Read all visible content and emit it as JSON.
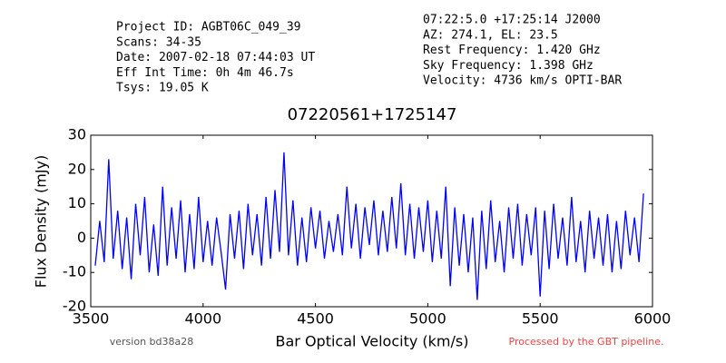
{
  "chart_data": {
    "type": "line",
    "title": "07220561+1725147",
    "header_left": [
      "Project ID: AGBT06C_049_39",
      "Scans: 34-35",
      "Date: 2007-02-18 07:44:03 UT",
      "Eff Int Time: 0h 4m 46.7s",
      "Tsys: 19.05 K"
    ],
    "header_right": [
      "07:22:5.0 +17:25:14 J2000",
      "AZ: 274.1, EL: 23.5",
      "Rest Frequency:   1.420 GHz",
      "Sky Frequency:    1.398 GHz",
      "Velocity: 4736 km/s OPTI-BAR"
    ],
    "footer_left": "version bd38a28",
    "footer_right": "Processed by the GBT pipeline.",
    "xlabel": "Bar Optical Velocity (km/s)",
    "ylabel": "Flux Density (mJy)",
    "color": "#0000ff",
    "x": [
      3520,
      3540,
      3560,
      3580,
      3600,
      3620,
      3640,
      3660,
      3680,
      3700,
      3720,
      3740,
      3760,
      3780,
      3800,
      3820,
      3840,
      3860,
      3880,
      3900,
      3920,
      3940,
      3960,
      3980,
      4000,
      4020,
      4040,
      4060,
      4080,
      4100,
      4120,
      4140,
      4160,
      4180,
      4200,
      4220,
      4240,
      4260,
      4280,
      4300,
      4320,
      4340,
      4360,
      4380,
      4400,
      4420,
      4440,
      4460,
      4480,
      4500,
      4520,
      4540,
      4560,
      4580,
      4600,
      4620,
      4640,
      4660,
      4680,
      4700,
      4720,
      4740,
      4760,
      4780,
      4800,
      4820,
      4840,
      4860,
      4880,
      4900,
      4920,
      4940,
      4960,
      4980,
      5000,
      5020,
      5040,
      5060,
      5080,
      5100,
      5120,
      5140,
      5160,
      5180,
      5200,
      5220,
      5240,
      5260,
      5280,
      5300,
      5320,
      5340,
      5360,
      5380,
      5400,
      5420,
      5440,
      5460,
      5480,
      5500,
      5520,
      5540,
      5560,
      5580,
      5600,
      5620,
      5640,
      5660,
      5680,
      5700,
      5720,
      5740,
      5760,
      5780,
      5800,
      5820,
      5840,
      5860,
      5880,
      5900,
      5920,
      5940,
      5960
    ],
    "values": [
      -8,
      5,
      -7,
      23,
      -6,
      8,
      -9,
      6,
      -12,
      10,
      -5,
      12,
      -10,
      4,
      -11,
      15,
      -8,
      9,
      -6,
      11,
      -10,
      7,
      -9,
      12,
      -7,
      5,
      -8,
      6,
      -4,
      -15,
      7,
      -6,
      8,
      -9,
      10,
      -5,
      7,
      -8,
      12,
      -6,
      14,
      -4,
      25,
      -5,
      11,
      -8,
      6,
      -7,
      9,
      -3,
      8,
      -6,
      5,
      -4,
      7,
      -5,
      15,
      -3,
      10,
      -6,
      9,
      -2,
      11,
      -5,
      8,
      -4,
      12,
      -3,
      16,
      -5,
      10,
      -6,
      9,
      -4,
      11,
      -7,
      8,
      -6,
      15,
      -14,
      9,
      -8,
      7,
      -10,
      6,
      -18,
      8,
      -9,
      11,
      -7,
      5,
      -10,
      9,
      -6,
      10,
      -8,
      7,
      -5,
      9,
      -17,
      8,
      -9,
      10,
      -6,
      6,
      -8,
      12,
      -7,
      5,
      -10,
      8,
      -6,
      6,
      -8,
      7,
      -10,
      5,
      -9,
      8,
      -5,
      6,
      -7,
      13
    ],
    "xlim": [
      3500,
      6000
    ],
    "xticks": [
      3500,
      4000,
      4500,
      5000,
      5500,
      6000
    ],
    "ylim": [
      -20,
      30
    ],
    "yticks": [
      -20,
      -10,
      0,
      10,
      20,
      30
    ]
  }
}
